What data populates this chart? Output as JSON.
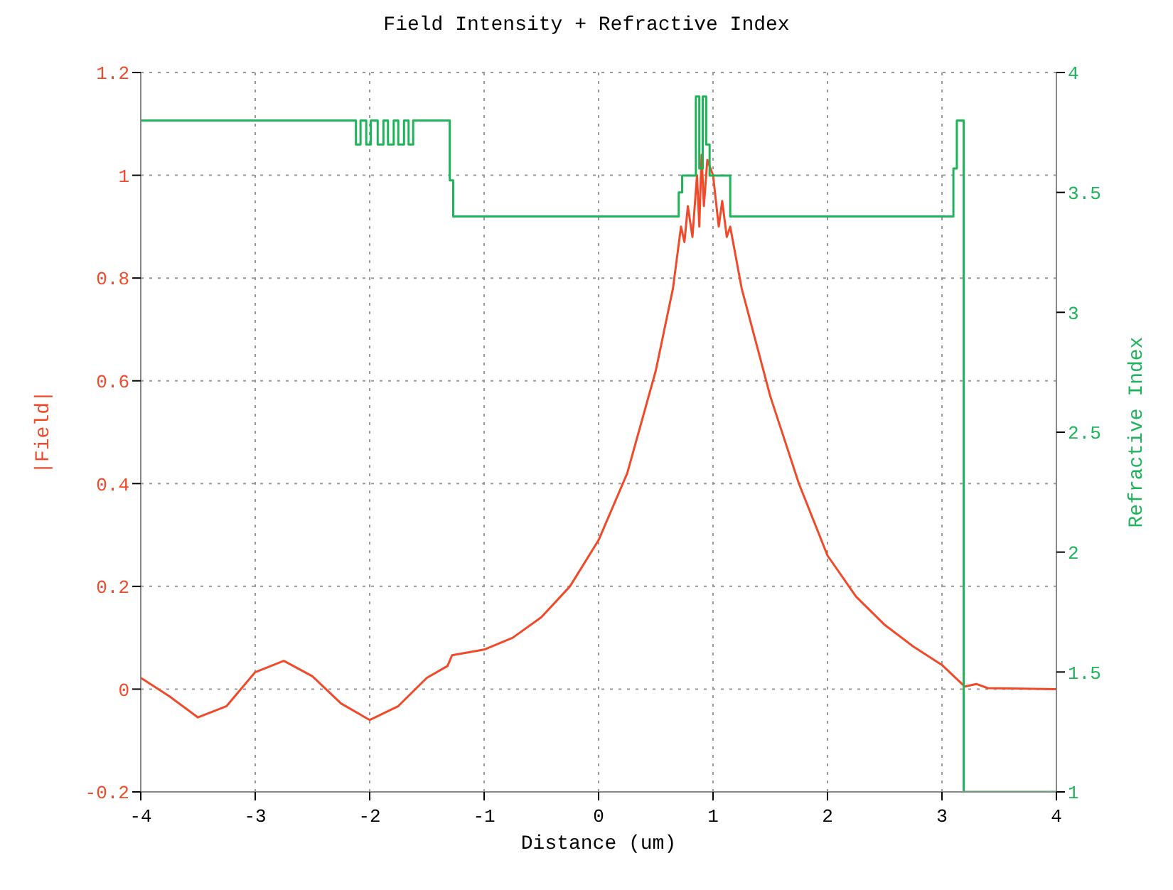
{
  "chart_data": {
    "type": "line",
    "title": "Field Intensity + Refractive Index",
    "xlabel": "Distance (um)",
    "ylabel": "|Field|",
    "y2label": "Refractive Index",
    "xlim": [
      -4,
      4
    ],
    "xticks": [
      -4,
      -3,
      -2,
      -1,
      0,
      1,
      2,
      3,
      4
    ],
    "ylim": [
      -0.2,
      1.2
    ],
    "yticks": [
      -0.2,
      0,
      0.2,
      0.4,
      0.6,
      0.8,
      1,
      1.2
    ],
    "y2lim": [
      1,
      4
    ],
    "y2ticks": [
      1,
      1.5,
      2,
      2.5,
      3,
      3.5,
      4
    ],
    "grid": true,
    "series": [
      {
        "color": "#f04a2a",
        "x": [
          -4,
          -3.75,
          -3.5,
          -3.25,
          -3,
          -2.75,
          -2.5,
          -2.25,
          -2,
          -1.75,
          -1.5,
          -1.32,
          -1.28,
          -1,
          -0.75,
          -0.5,
          -0.25,
          0,
          0.25,
          0.5,
          0.65,
          0.72,
          0.75,
          0.78,
          0.82,
          0.86,
          0.88,
          0.9,
          0.92,
          0.95,
          1,
          1.05,
          1.08,
          1.12,
          1.15,
          1.25,
          1.5,
          1.75,
          2,
          2.25,
          2.5,
          2.75,
          3,
          3.2,
          3.3,
          3.4,
          4
        ],
        "values": [
          0.022,
          -0.014,
          -0.055,
          -0.033,
          0.033,
          0.055,
          0.025,
          -0.028,
          -0.06,
          -0.033,
          0.022,
          0.045,
          0.066,
          0.077,
          0.1,
          0.14,
          0.2,
          0.29,
          0.42,
          0.62,
          0.78,
          0.9,
          0.87,
          0.94,
          0.88,
          1.0,
          0.9,
          1.04,
          0.94,
          1.03,
          1.0,
          0.9,
          0.95,
          0.88,
          0.9,
          0.78,
          0.57,
          0.4,
          0.26,
          0.18,
          0.125,
          0.083,
          0.047,
          0.005,
          0.01,
          0.002,
          0.0
        ]
      },
      {
        "type": "step",
        "axis": "y2",
        "color": "#1fb35a",
        "x": [
          -4,
          -2.12,
          -2.08,
          -2.03,
          -1.99,
          -1.93,
          -1.88,
          -1.84,
          -1.79,
          -1.75,
          -1.7,
          -1.66,
          -1.62,
          -1.3,
          -1.27,
          0.7,
          0.73,
          0.85,
          0.88,
          0.91,
          0.94,
          0.97,
          1.15,
          3.1,
          3.13,
          3.19,
          4
        ],
        "values": [
          3.8,
          3.7,
          3.8,
          3.7,
          3.8,
          3.7,
          3.8,
          3.7,
          3.8,
          3.7,
          3.8,
          3.7,
          3.8,
          3.55,
          3.4,
          3.5,
          3.57,
          3.9,
          3.6,
          3.9,
          3.7,
          3.57,
          3.4,
          3.6,
          3.8,
          1.0,
          1.0
        ]
      }
    ]
  }
}
